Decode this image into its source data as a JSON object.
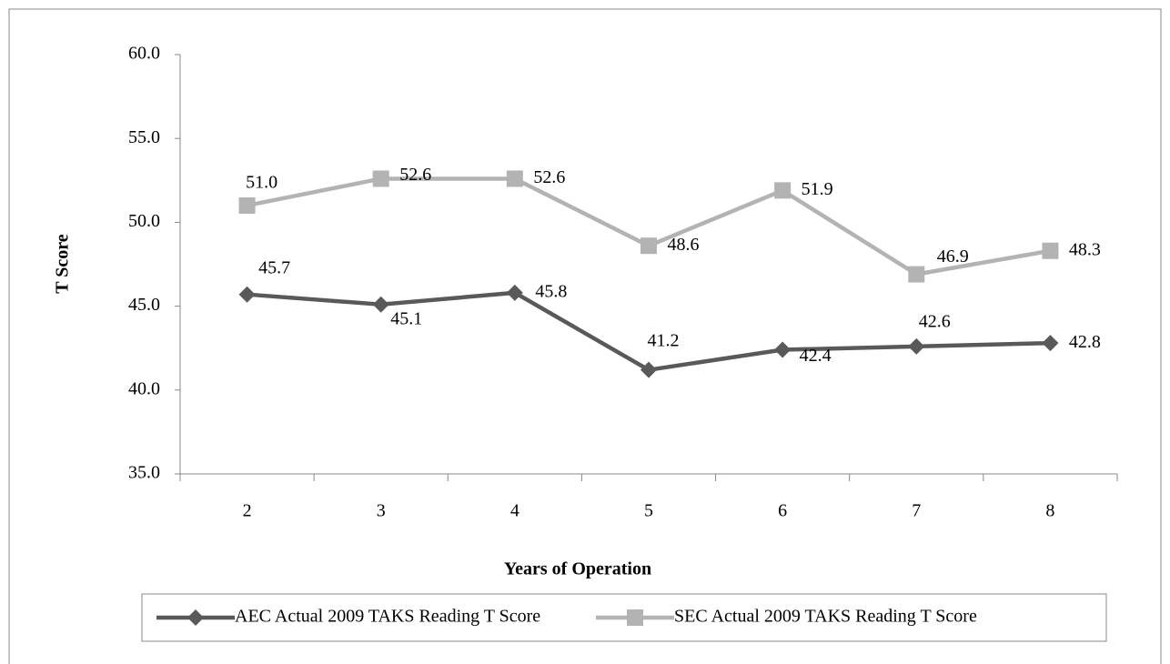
{
  "chart_data": {
    "type": "line",
    "x_label": "Years of Operation",
    "y_label": "T Score",
    "categories": [
      "2",
      "3",
      "4",
      "5",
      "6",
      "7",
      "8"
    ],
    "series": [
      {
        "name": "AEC Actual 2009 TAKS Reading T Score",
        "color": "#595959",
        "marker": "diamond",
        "values": [
          45.7,
          45.1,
          45.8,
          41.2,
          42.4,
          42.6,
          42.8
        ],
        "value_labels": [
          "45.7",
          "45.1",
          "45.8",
          "41.2",
          "42.4",
          "42.6",
          "42.8"
        ]
      },
      {
        "name": "SEC Actual 2009 TAKS Reading T Score",
        "color": "#b3b3b3",
        "marker": "square",
        "values": [
          51.0,
          52.6,
          52.6,
          48.6,
          51.9,
          46.9,
          48.3
        ],
        "value_labels": [
          "51.0",
          "52.6",
          "52.6",
          "48.6",
          "51.9",
          "46.9",
          "48.3"
        ]
      }
    ],
    "ylim": [
      35,
      60
    ],
    "yticks": [
      {
        "value": 35,
        "label": "35.0"
      },
      {
        "value": 40,
        "label": "40.0"
      },
      {
        "value": 45,
        "label": "45.0"
      },
      {
        "value": 50,
        "label": "50.0"
      },
      {
        "value": 55,
        "label": "55.0"
      },
      {
        "value": 60,
        "label": "60.0"
      }
    ],
    "grid": false,
    "legend": "bottom"
  }
}
